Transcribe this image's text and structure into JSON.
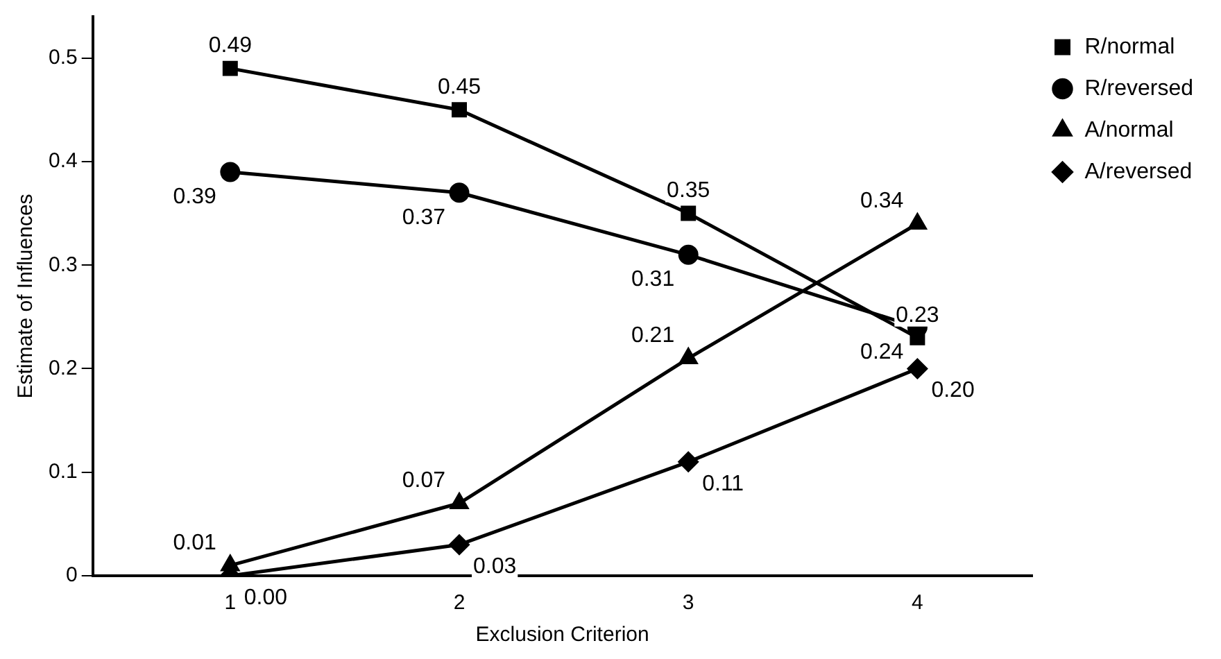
{
  "chart_data": {
    "type": "line",
    "xlabel": "Exclusion Criterion",
    "ylabel": "Estimate of Influences",
    "x": [
      1,
      2,
      3,
      4
    ],
    "xlim": [
      0.4,
      4.5
    ],
    "xticks": [
      1,
      2,
      3,
      4
    ],
    "ylim": [
      0,
      0.54
    ],
    "yticks": [
      0,
      0.1,
      0.2,
      0.3,
      0.4,
      0.5
    ],
    "grid": false,
    "legend": "top right",
    "line_style": "solid",
    "series": [
      {
        "name": "R/normal",
        "color": "#000000",
        "marker": "square",
        "values": [
          0.49,
          0.45,
          0.35,
          0.23
        ],
        "value_labels": [
          "0.49",
          "0.45",
          "0.35",
          "0.23"
        ]
      },
      {
        "name": "R/reversed",
        "color": "#000000",
        "marker": "circle",
        "values": [
          0.39,
          0.37,
          0.31,
          0.24
        ],
        "value_labels": [
          "0.39",
          "0.37",
          "0.31",
          "0.24"
        ]
      },
      {
        "name": "A/normal",
        "color": "#000000",
        "marker": "triangle",
        "values": [
          0.01,
          0.07,
          0.21,
          0.34
        ],
        "value_labels": [
          "0.01",
          "0.07",
          "0.21",
          "0.34"
        ]
      },
      {
        "name": "A/reversed",
        "color": "#000000",
        "marker": "diamond",
        "values": [
          0.0,
          0.03,
          0.11,
          0.2
        ],
        "value_labels": [
          "0.00",
          "0.03",
          "0.11",
          "0.20"
        ]
      }
    ]
  }
}
